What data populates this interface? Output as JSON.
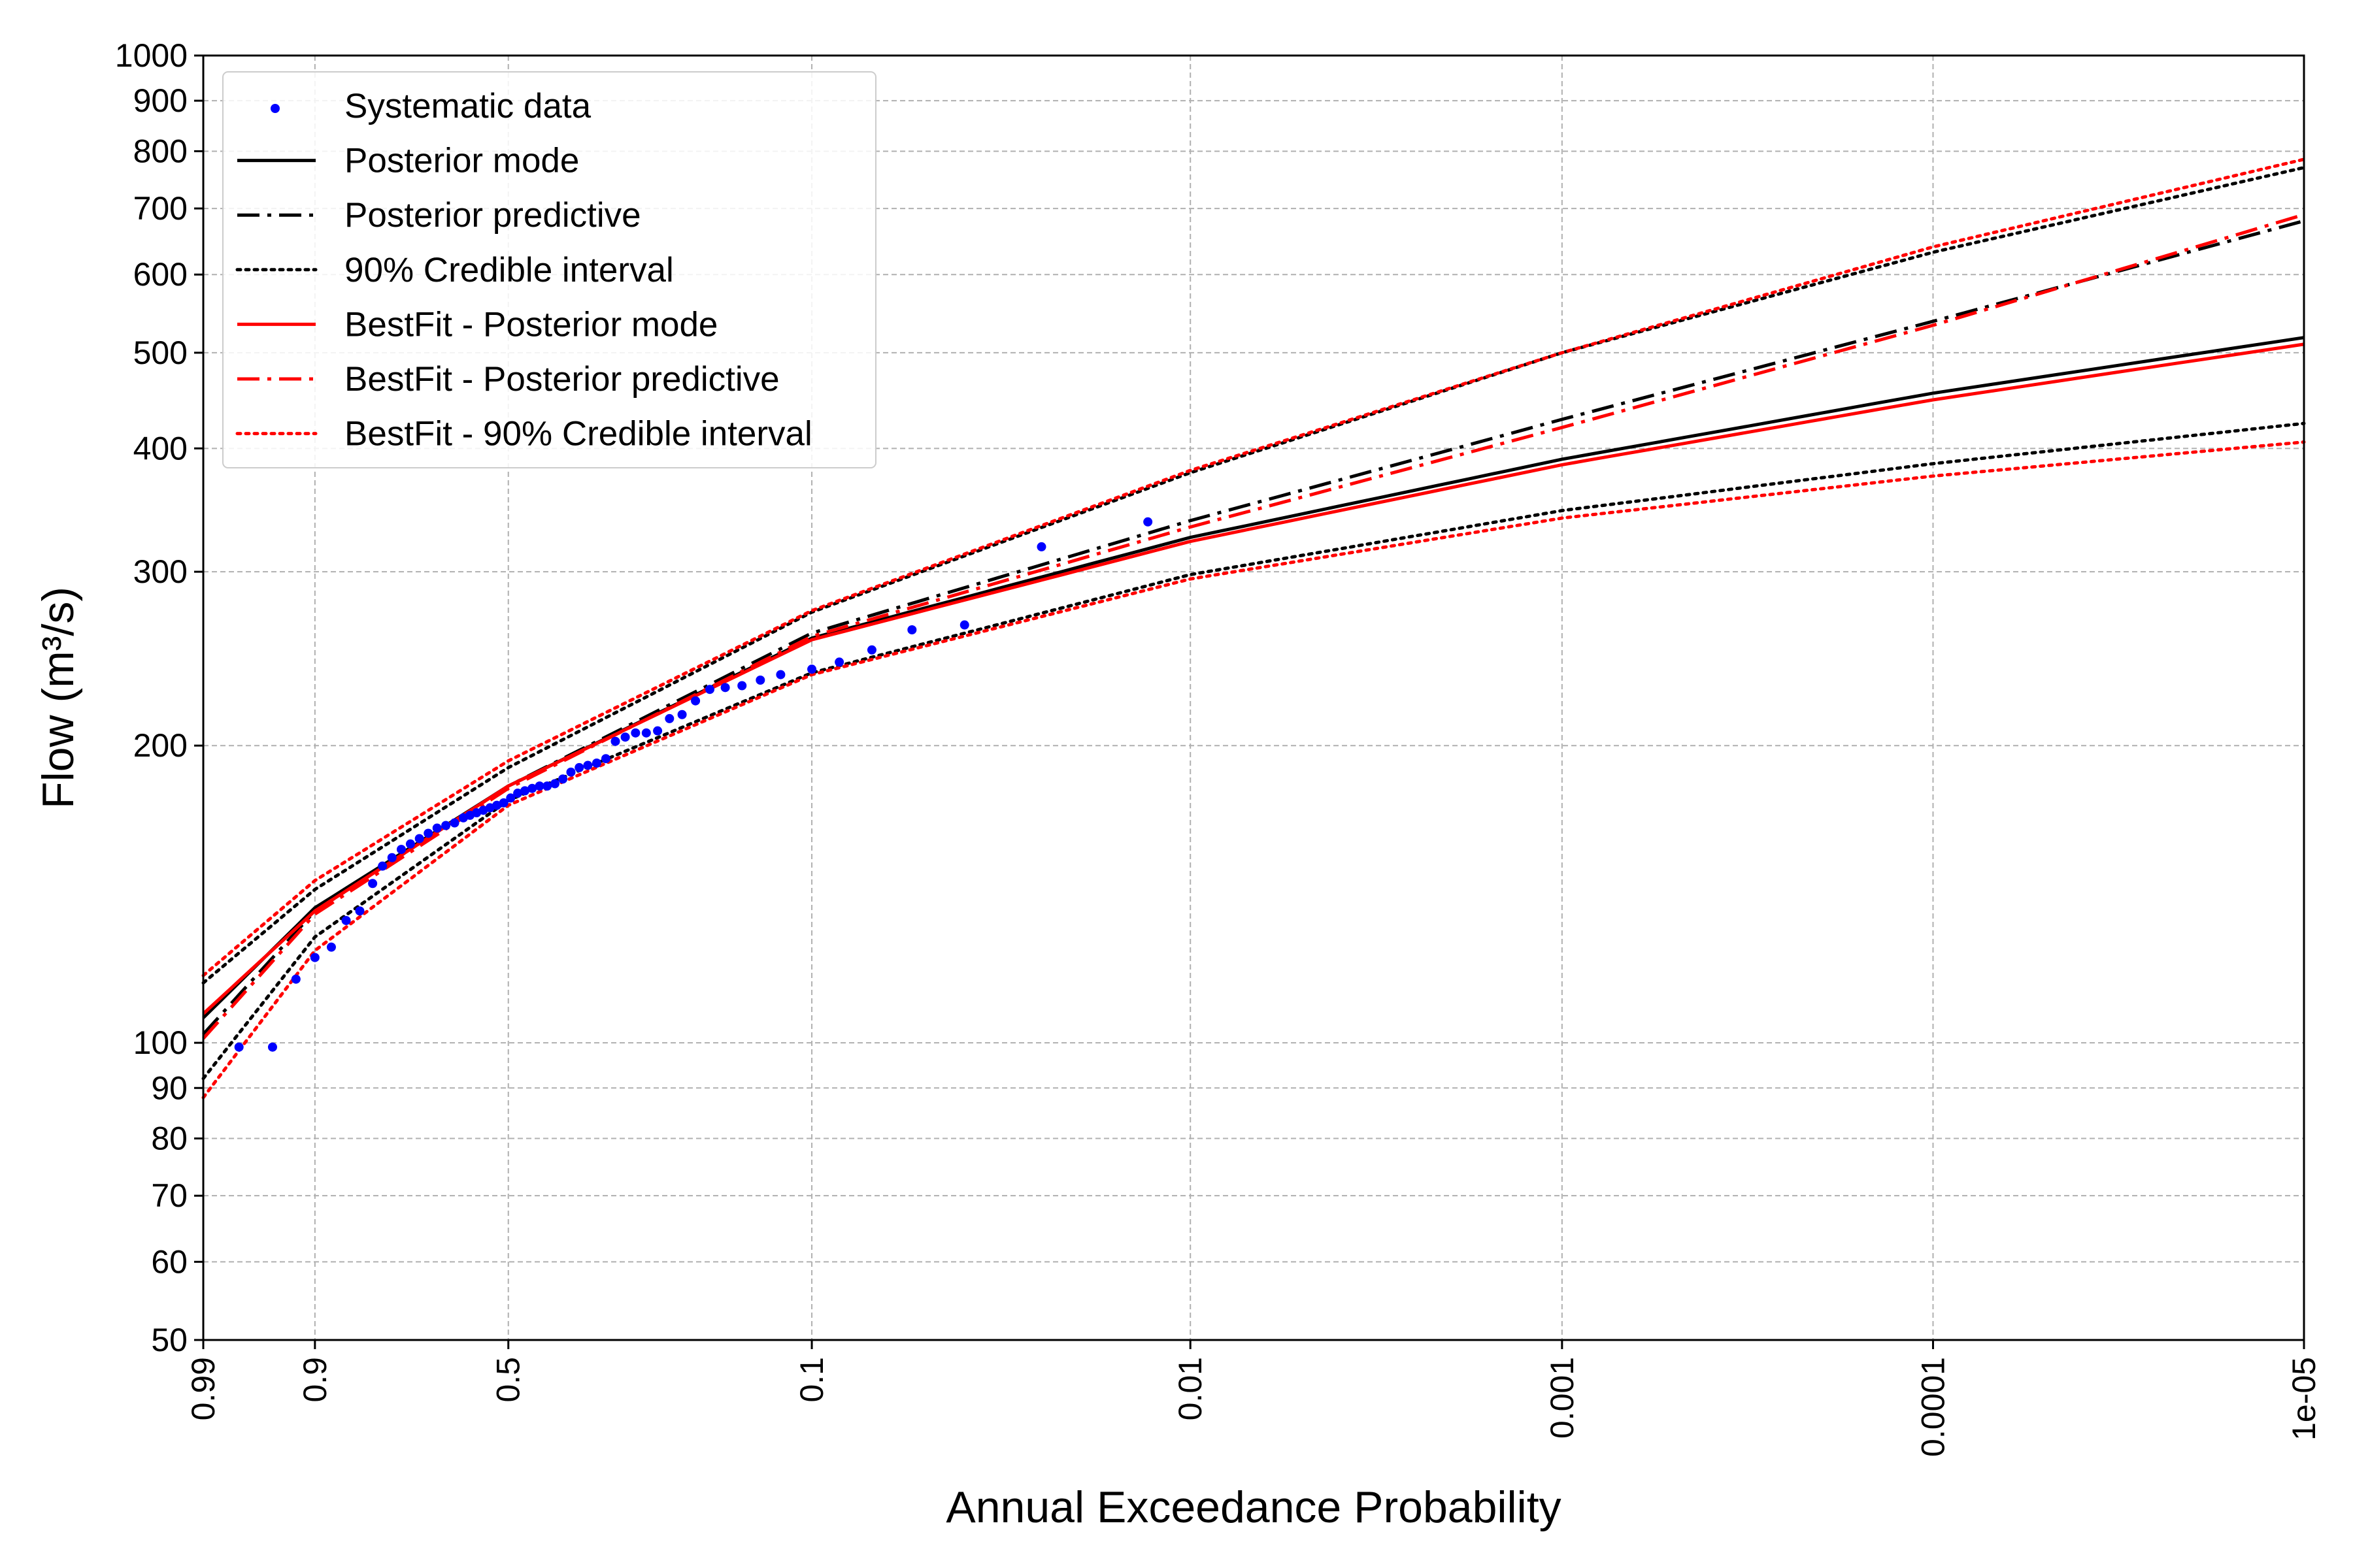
{
  "chart_data": {
    "type": "line",
    "title": "",
    "xlabel": "Annual Exceedance Probability",
    "ylabel": "Flow (m³/s)",
    "x_scale": "gumbel-probability",
    "y_scale": "log",
    "xlim": [
      0.99,
      1e-05
    ],
    "ylim": [
      50,
      1000
    ],
    "grid": true,
    "legend_position": "top-left",
    "x_ticks": [
      {
        "value": 0.99,
        "label": "0.99"
      },
      {
        "value": 0.9,
        "label": "0.9"
      },
      {
        "value": 0.5,
        "label": "0.5"
      },
      {
        "value": 0.1,
        "label": "0.1"
      },
      {
        "value": 0.01,
        "label": "0.01"
      },
      {
        "value": 0.001,
        "label": "0.001"
      },
      {
        "value": 0.0001,
        "label": "0.0001"
      },
      {
        "value": 1e-05,
        "label": "1e-05"
      }
    ],
    "y_ticks": [
      {
        "value": 50,
        "label": "50"
      },
      {
        "value": 60,
        "label": "60"
      },
      {
        "value": 70,
        "label": "70"
      },
      {
        "value": 80,
        "label": "80"
      },
      {
        "value": 90,
        "label": "90"
      },
      {
        "value": 100,
        "label": "100"
      },
      {
        "value": 200,
        "label": "200"
      },
      {
        "value": 300,
        "label": "300"
      },
      {
        "value": 400,
        "label": "400"
      },
      {
        "value": 500,
        "label": "500"
      },
      {
        "value": 600,
        "label": "600"
      },
      {
        "value": 700,
        "label": "700"
      },
      {
        "value": 800,
        "label": "800"
      },
      {
        "value": 900,
        "label": "900"
      },
      {
        "value": 1000,
        "label": "1000"
      }
    ],
    "colors": {
      "black": "#000000",
      "red": "#ff0000",
      "blue": "#0000ff",
      "grid": "#b0b0b0"
    },
    "series": [
      {
        "name": "Systematic data",
        "kind": "scatter",
        "color": "#0000ff",
        "x": [
          0.975,
          0.95,
          0.925,
          0.9,
          0.875,
          0.85,
          0.825,
          0.8,
          0.78,
          0.76,
          0.74,
          0.72,
          0.7,
          0.68,
          0.66,
          0.64,
          0.62,
          0.6,
          0.585,
          0.57,
          0.555,
          0.54,
          0.525,
          0.51,
          0.495,
          0.48,
          0.465,
          0.45,
          0.435,
          0.42,
          0.405,
          0.39,
          0.375,
          0.36,
          0.345,
          0.33,
          0.315,
          0.3,
          0.285,
          0.27,
          0.255,
          0.24,
          0.225,
          0.21,
          0.195,
          0.18,
          0.165,
          0.15,
          0.135,
          0.12,
          0.1,
          0.085,
          0.07,
          0.055,
          0.04,
          0.025,
          0.013
        ],
        "y": [
          99,
          99,
          116,
          122,
          125,
          133,
          136,
          145,
          151,
          154,
          157,
          159,
          161,
          163,
          165,
          166,
          167,
          169,
          170,
          171,
          172,
          173,
          174,
          175,
          177,
          179,
          180,
          181,
          182,
          182,
          183,
          185,
          188,
          190,
          191,
          192,
          194,
          202,
          204,
          206,
          206,
          207,
          213,
          215,
          222,
          228,
          229,
          230,
          233,
          236,
          239,
          243,
          250,
          262,
          265,
          318,
          337
        ]
      },
      {
        "name": "Posterior mode",
        "kind": "line",
        "style": "solid",
        "color": "#000000",
        "x": [
          0.99,
          0.9,
          0.5,
          0.1,
          0.01,
          0.001,
          0.0001,
          1e-05
        ],
        "y": [
          106,
          137,
          182,
          257,
          325,
          390,
          455,
          518
        ]
      },
      {
        "name": "Posterior predictive",
        "kind": "line",
        "style": "dashdot",
        "color": "#000000",
        "x": [
          0.99,
          0.9,
          0.5,
          0.1,
          0.01,
          0.001,
          0.0001,
          1e-05
        ],
        "y": [
          102,
          136,
          182,
          260,
          338,
          428,
          538,
          680
        ]
      },
      {
        "name": "90% Credible interval",
        "kind": "band",
        "style": "dotted",
        "color": "#000000",
        "x": [
          0.99,
          0.9,
          0.5,
          0.1,
          0.01,
          0.001,
          0.0001,
          1e-05
        ],
        "lower": [
          92,
          128,
          176,
          237,
          298,
          346,
          386,
          424
        ],
        "upper": [
          115,
          143,
          190,
          273,
          378,
          500,
          632,
          770
        ]
      },
      {
        "name": "BestFit - Posterior mode",
        "kind": "line",
        "style": "solid",
        "color": "#ff0000",
        "x": [
          0.99,
          0.9,
          0.5,
          0.1,
          0.01,
          0.001,
          0.0001,
          1e-05
        ],
        "y": [
          107,
          136,
          182,
          256,
          322,
          385,
          448,
          510
        ]
      },
      {
        "name": "BestFit - Posterior predictive",
        "kind": "line",
        "style": "dashdot",
        "color": "#ff0000",
        "x": [
          0.99,
          0.9,
          0.5,
          0.1,
          0.01,
          0.001,
          0.0001,
          1e-05
        ],
        "y": [
          101,
          135,
          181,
          258,
          333,
          420,
          533,
          690
        ]
      },
      {
        "name": "BestFit - 90% Credible interval",
        "kind": "band",
        "style": "dotted",
        "color": "#ff0000",
        "x": [
          0.99,
          0.9,
          0.5,
          0.1,
          0.01,
          0.001,
          0.0001,
          1e-05
        ],
        "lower": [
          88,
          124,
          174,
          236,
          295,
          340,
          375,
          406
        ],
        "upper": [
          117,
          146,
          193,
          274,
          380,
          500,
          640,
          785
        ]
      }
    ]
  }
}
